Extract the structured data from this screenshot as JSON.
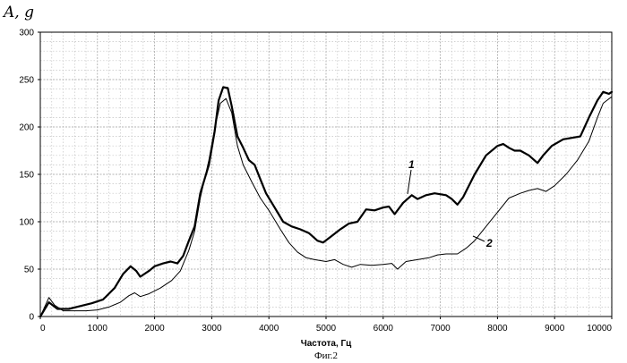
{
  "figure_caption": "Фиг.2",
  "chart_data": {
    "type": "line",
    "title": "",
    "xlabel": "Частота, Гц",
    "ylabel": "A, g",
    "xlim": [
      0,
      10000
    ],
    "ylim": [
      0,
      300
    ],
    "x_ticks": [
      0,
      1000,
      2000,
      3000,
      4000,
      5000,
      6000,
      7000,
      8000,
      9000,
      10000
    ],
    "y_ticks": [
      0,
      50,
      100,
      150,
      200,
      250,
      300
    ],
    "grid": true,
    "legend": "none",
    "series": [
      {
        "name": "1",
        "color": "#000000",
        "points": [
          [
            0,
            0
          ],
          [
            150,
            15
          ],
          [
            300,
            8
          ],
          [
            500,
            8
          ],
          [
            700,
            11
          ],
          [
            900,
            14
          ],
          [
            1100,
            18
          ],
          [
            1300,
            30
          ],
          [
            1450,
            45
          ],
          [
            1580,
            53
          ],
          [
            1680,
            48
          ],
          [
            1750,
            42
          ],
          [
            1900,
            48
          ],
          [
            2000,
            53
          ],
          [
            2150,
            56
          ],
          [
            2280,
            58
          ],
          [
            2400,
            56
          ],
          [
            2500,
            64
          ],
          [
            2600,
            80
          ],
          [
            2700,
            95
          ],
          [
            2800,
            130
          ],
          [
            2950,
            160
          ],
          [
            3050,
            195
          ],
          [
            3120,
            228
          ],
          [
            3200,
            242
          ],
          [
            3280,
            241
          ],
          [
            3350,
            222
          ],
          [
            3450,
            190
          ],
          [
            3550,
            178
          ],
          [
            3650,
            165
          ],
          [
            3750,
            160
          ],
          [
            3850,
            145
          ],
          [
            3950,
            130
          ],
          [
            4100,
            115
          ],
          [
            4250,
            100
          ],
          [
            4400,
            95
          ],
          [
            4550,
            92
          ],
          [
            4700,
            88
          ],
          [
            4850,
            80
          ],
          [
            4950,
            78
          ],
          [
            5100,
            85
          ],
          [
            5250,
            92
          ],
          [
            5400,
            98
          ],
          [
            5550,
            100
          ],
          [
            5700,
            113
          ],
          [
            5850,
            112
          ],
          [
            6000,
            115
          ],
          [
            6100,
            116
          ],
          [
            6200,
            108
          ],
          [
            6350,
            120
          ],
          [
            6500,
            128
          ],
          [
            6600,
            124
          ],
          [
            6750,
            128
          ],
          [
            6900,
            130
          ],
          [
            7100,
            128
          ],
          [
            7200,
            124
          ],
          [
            7300,
            118
          ],
          [
            7400,
            126
          ],
          [
            7600,
            150
          ],
          [
            7800,
            170
          ],
          [
            8000,
            180
          ],
          [
            8100,
            182
          ],
          [
            8200,
            178
          ],
          [
            8300,
            175
          ],
          [
            8400,
            175
          ],
          [
            8550,
            170
          ],
          [
            8700,
            162
          ],
          [
            8800,
            170
          ],
          [
            8950,
            180
          ],
          [
            9150,
            187
          ],
          [
            9450,
            190
          ],
          [
            9600,
            210
          ],
          [
            9750,
            228
          ],
          [
            9850,
            237
          ],
          [
            9950,
            235
          ],
          [
            10000,
            237
          ]
        ]
      },
      {
        "name": "2",
        "color": "#000000",
        "points": [
          [
            0,
            0
          ],
          [
            150,
            20
          ],
          [
            250,
            12
          ],
          [
            400,
            6
          ],
          [
            600,
            6
          ],
          [
            800,
            6
          ],
          [
            1000,
            7
          ],
          [
            1200,
            10
          ],
          [
            1400,
            15
          ],
          [
            1550,
            22
          ],
          [
            1650,
            25
          ],
          [
            1750,
            21
          ],
          [
            1900,
            24
          ],
          [
            2100,
            30
          ],
          [
            2300,
            38
          ],
          [
            2450,
            48
          ],
          [
            2600,
            70
          ],
          [
            2700,
            90
          ],
          [
            2800,
            125
          ],
          [
            2950,
            165
          ],
          [
            3050,
            198
          ],
          [
            3150,
            225
          ],
          [
            3250,
            230
          ],
          [
            3350,
            215
          ],
          [
            3450,
            180
          ],
          [
            3550,
            160
          ],
          [
            3700,
            142
          ],
          [
            3850,
            125
          ],
          [
            4000,
            112
          ],
          [
            4200,
            92
          ],
          [
            4350,
            78
          ],
          [
            4500,
            68
          ],
          [
            4650,
            62
          ],
          [
            4800,
            60
          ],
          [
            5000,
            58
          ],
          [
            5150,
            60
          ],
          [
            5300,
            55
          ],
          [
            5450,
            52
          ],
          [
            5600,
            55
          ],
          [
            5800,
            54
          ],
          [
            6000,
            55
          ],
          [
            6150,
            56
          ],
          [
            6250,
            50
          ],
          [
            6400,
            58
          ],
          [
            6600,
            60
          ],
          [
            6800,
            62
          ],
          [
            6950,
            65
          ],
          [
            7100,
            66
          ],
          [
            7300,
            66
          ],
          [
            7450,
            72
          ],
          [
            7600,
            80
          ],
          [
            7800,
            95
          ],
          [
            8000,
            110
          ],
          [
            8200,
            125
          ],
          [
            8400,
            130
          ],
          [
            8550,
            133
          ],
          [
            8700,
            135
          ],
          [
            8850,
            132
          ],
          [
            9000,
            138
          ],
          [
            9200,
            150
          ],
          [
            9400,
            165
          ],
          [
            9600,
            185
          ],
          [
            9750,
            210
          ],
          [
            9850,
            225
          ],
          [
            10000,
            232
          ]
        ]
      }
    ]
  }
}
